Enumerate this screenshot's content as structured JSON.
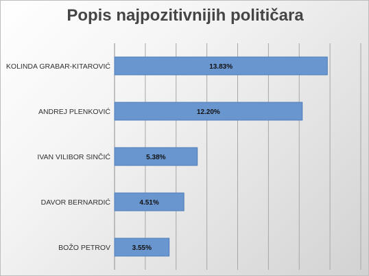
{
  "chart_data": {
    "type": "bar",
    "orientation": "horizontal",
    "title": "Popis najpozitivnijih političara",
    "categories": [
      "KOLINDA GRABAR-KITAROVIĆ",
      "ANDREJ PLENKOVIĆ",
      "IVAN VILIBOR SINČIĆ",
      "DAVOR BERNARDIĆ",
      "BOŽO PETROV"
    ],
    "values": [
      13.83,
      12.2,
      5.38,
      4.51,
      3.55
    ],
    "data_labels": [
      "13.83%",
      "12.20%",
      "5.38%",
      "4.51%",
      "3.55%"
    ],
    "xlim": [
      0,
      16
    ],
    "grid": true,
    "legend": "none",
    "bar_color": "#6a96cf",
    "bar_edge_color": "#4f7bb8"
  }
}
